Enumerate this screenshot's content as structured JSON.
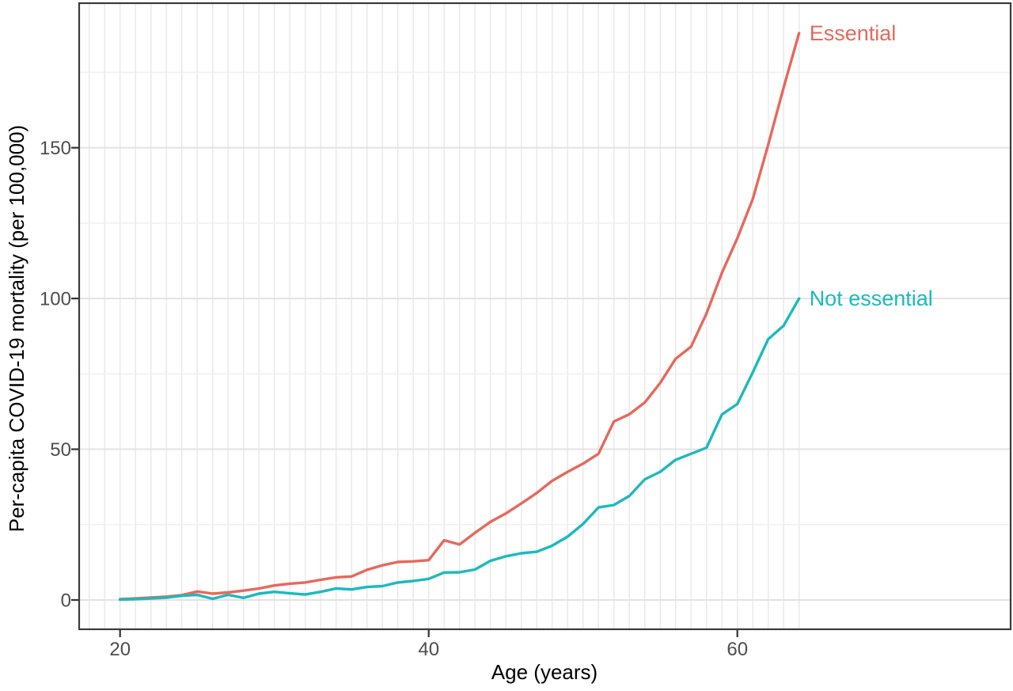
{
  "chart_data": {
    "type": "line",
    "title": "",
    "xlabel": "Age (years)",
    "ylabel": "Per-capita COVID-19 mortality (per 100,000)",
    "x_ticks": [
      20,
      40,
      60
    ],
    "y_ticks": [
      0,
      50,
      100,
      150
    ],
    "y_minor_gridlines": [
      25,
      75,
      125,
      175
    ],
    "x_gridline_ages": {
      "start": 18,
      "end": 64,
      "step": 1
    },
    "xlim": [
      17.3,
      77.7
    ],
    "ylim": [
      -10,
      197.5
    ],
    "legend_position": "direct-labels-at-line-ends",
    "grid": true,
    "x": [
      20,
      21,
      22,
      23,
      24,
      25,
      26,
      27,
      28,
      29,
      30,
      31,
      32,
      33,
      34,
      35,
      36,
      37,
      38,
      39,
      40,
      41,
      42,
      43,
      44,
      45,
      46,
      47,
      48,
      49,
      50,
      51,
      52,
      53,
      54,
      55,
      56,
      57,
      58,
      59,
      60,
      61,
      62,
      63,
      64
    ],
    "series": [
      {
        "name": "essential",
        "label": "Essential",
        "color": "#E7685C",
        "values": [
          0.3,
          0.5,
          0.8,
          1.1,
          1.6,
          2.8,
          2.1,
          2.5,
          3.1,
          3.8,
          4.8,
          5.4,
          5.8,
          6.7,
          7.5,
          7.8,
          10,
          11.5,
          12.6,
          12.8,
          13.2,
          19.8,
          18.4,
          22.3,
          25.9,
          28.7,
          32,
          35.5,
          39.5,
          42.5,
          45.2,
          48.5,
          59.2,
          61.6,
          65.5,
          72,
          80,
          84,
          95,
          108.5,
          120,
          133,
          151,
          170,
          188
        ]
      },
      {
        "name": "not-essential",
        "label": "Not essential",
        "color": "#1DB9BD",
        "values": [
          0.1,
          0.3,
          0.5,
          0.8,
          1.4,
          1.7,
          0.4,
          1.7,
          0.7,
          2.1,
          2.7,
          2.2,
          1.8,
          2.7,
          3.8,
          3.5,
          4.3,
          4.6,
          5.8,
          6.3,
          7,
          9.1,
          9.2,
          10.1,
          13,
          14.5,
          15.5,
          16,
          18,
          21,
          25.2,
          30.7,
          31.5,
          34.5,
          40,
          42.5,
          46.5,
          48.5,
          50.5,
          61.5,
          65,
          75.5,
          86.5,
          91,
          100
        ]
      }
    ],
    "colors": {
      "panel_background": "#FFFFFF",
      "panel_border": "#3B3B3B",
      "grid_major": "#E3E3E3",
      "grid_minor": "#EFEFEF",
      "grid_vertical": "#E7E7E7",
      "tick_mark": "#333333",
      "tick_text": "#4D4D4D",
      "axis_title_text": "#000000"
    }
  }
}
